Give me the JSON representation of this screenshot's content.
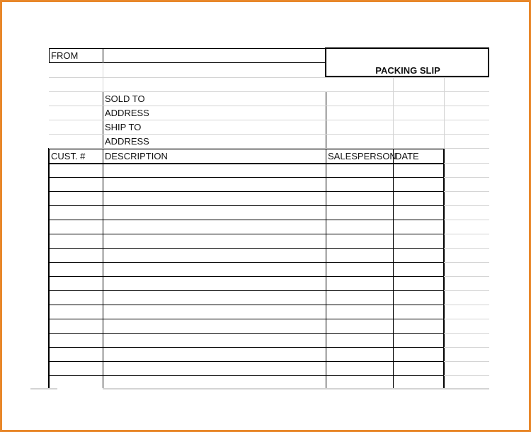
{
  "sheet": {
    "from_label": "FROM",
    "title": "PACKING SLIP",
    "sold_to_label": "SOLD TO",
    "sold_to_address_label": "ADDRESS",
    "ship_to_label": "SHIP TO",
    "ship_to_address_label": "ADDRESS",
    "columns": [
      "CUST. #",
      "DESCRIPTION",
      "SALESPERSON",
      "DATE"
    ],
    "rows": [
      [
        "",
        "",
        "",
        ""
      ],
      [
        "",
        "",
        "",
        ""
      ],
      [
        "",
        "",
        "",
        ""
      ],
      [
        "",
        "",
        "",
        ""
      ],
      [
        "",
        "",
        "",
        ""
      ],
      [
        "",
        "",
        "",
        ""
      ],
      [
        "",
        "",
        "",
        ""
      ],
      [
        "",
        "",
        "",
        ""
      ],
      [
        "",
        "",
        "",
        ""
      ],
      [
        "",
        "",
        "",
        ""
      ],
      [
        "",
        "",
        "",
        ""
      ],
      [
        "",
        "",
        "",
        ""
      ],
      [
        "",
        "",
        "",
        ""
      ],
      [
        "",
        "",
        "",
        ""
      ],
      [
        "",
        "",
        "",
        ""
      ],
      [
        "",
        "",
        "",
        ""
      ]
    ]
  },
  "colors": {
    "border": "#e8872a",
    "gridline": "#d4d4d4"
  }
}
